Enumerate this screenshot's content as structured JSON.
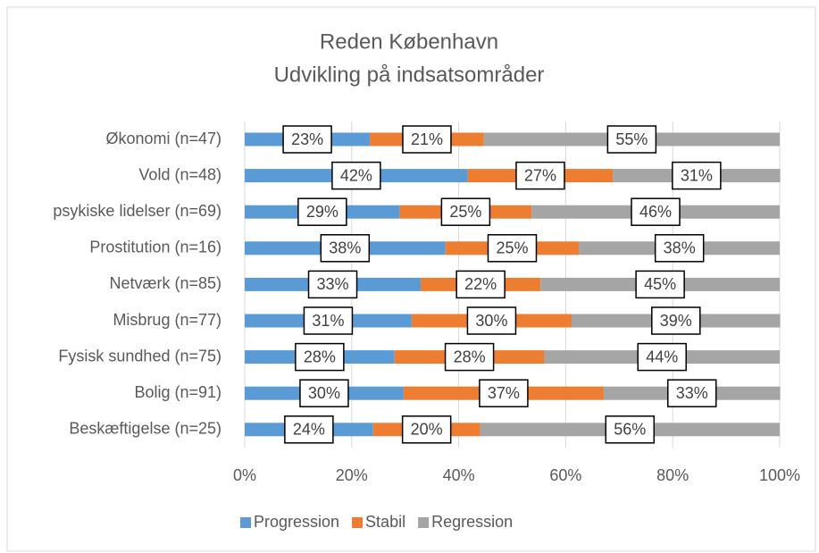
{
  "chart_data": {
    "type": "stacked_barh",
    "title": [
      "Reden København",
      "Udvikling på indsatsområder"
    ],
    "categories": [
      "Økonomi (n=47)",
      "Vold (n=48)",
      "psykiske lidelser (n=69)",
      "Prostitution (n=16)",
      "Netværk (n=85)",
      "Misbrug (n=77)",
      "Fysisk sundhed (n=75)",
      "Bolig (n=91)",
      "Beskæftigelse (n=25)"
    ],
    "series": [
      {
        "name": "Progression",
        "color": "#5b9bd5",
        "values": [
          23.4,
          41.7,
          29.0,
          37.5,
          32.9,
          31.2,
          28.0,
          29.7,
          24.0
        ],
        "value_labels": [
          "23%",
          "42%",
          "29%",
          "38%",
          "33%",
          "31%",
          "28%",
          "30%",
          "24%"
        ]
      },
      {
        "name": "Stabil",
        "color": "#ed7d31",
        "values": [
          21.3,
          27.1,
          24.6,
          25.0,
          22.4,
          29.9,
          28.0,
          37.4,
          20.0
        ],
        "value_labels": [
          "21%",
          "27%",
          "25%",
          "25%",
          "22%",
          "30%",
          "28%",
          "37%",
          "20%"
        ]
      },
      {
        "name": "Regression",
        "color": "#a5a5a5",
        "values": [
          55.3,
          31.3,
          46.4,
          37.5,
          44.7,
          39.0,
          44.0,
          33.0,
          56.0
        ],
        "value_labels": [
          "55%",
          "31%",
          "46%",
          "38%",
          "45%",
          "39%",
          "44%",
          "33%",
          "56%"
        ]
      }
    ],
    "xlim": [
      0,
      100
    ],
    "xticks": [
      {
        "value": 0,
        "label": "0%"
      },
      {
        "value": 20,
        "label": "20%"
      },
      {
        "value": 40,
        "label": "40%"
      },
      {
        "value": 60,
        "label": "60%"
      },
      {
        "value": 80,
        "label": "80%"
      },
      {
        "value": 100,
        "label": "100%"
      }
    ],
    "grid": true,
    "legend": "bottom"
  }
}
